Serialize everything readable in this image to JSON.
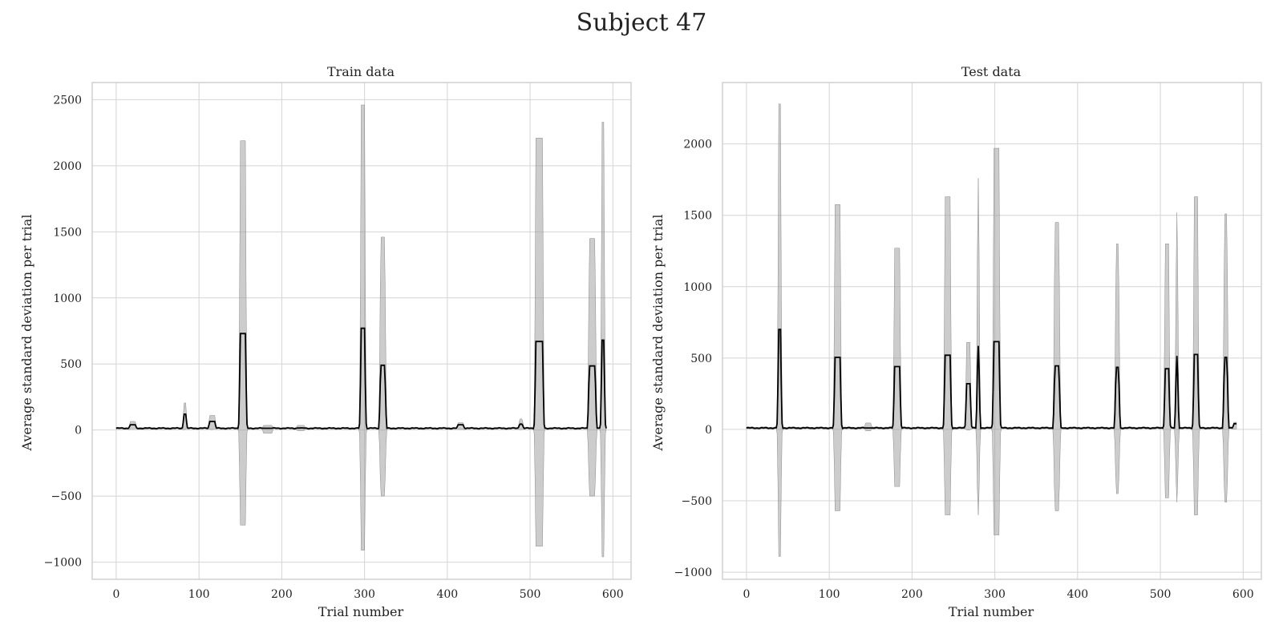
{
  "figure": {
    "title": "Subject 47"
  },
  "chart_data": [
    {
      "type": "line",
      "title": "Train data",
      "xlabel": "Trial number",
      "ylabel": "Average standard deviation per trial",
      "xlim": [
        -29,
        622
      ],
      "ylim": [
        -1130,
        2630
      ],
      "xticks": [
        0,
        100,
        200,
        300,
        400,
        500,
        600
      ],
      "yticks": [
        -1000,
        -500,
        0,
        500,
        1000,
        1500,
        2000,
        2500
      ],
      "grid": true,
      "x_end": 592,
      "baseline": 13,
      "series": [
        {
          "spikes": [
            {
              "x": 20,
              "w": 6,
              "mean": 40,
              "upper": 65,
              "lower": 10
            },
            {
              "x": 83,
              "w": 2,
              "mean": 120,
              "upper": 205,
              "lower": 5
            },
            {
              "x": 116,
              "w": 6,
              "mean": 65,
              "upper": 110,
              "lower": 10
            },
            {
              "x": 153,
              "w": 6,
              "mean": 730,
              "upper": 2190,
              "lower": -720
            },
            {
              "x": 183,
              "w": 10,
              "mean": 13,
              "upper": 35,
              "lower": -25
            },
            {
              "x": 223,
              "w": 8,
              "mean": 15,
              "upper": 35,
              "lower": -5
            },
            {
              "x": 298,
              "w": 4,
              "mean": 770,
              "upper": 2460,
              "lower": -910
            },
            {
              "x": 322,
              "w": 5,
              "mean": 490,
              "upper": 1460,
              "lower": -500
            },
            {
              "x": 416,
              "w": 6,
              "mean": 40,
              "upper": 55,
              "lower": 5
            },
            {
              "x": 489,
              "w": 3,
              "mean": 45,
              "upper": 85,
              "lower": 5
            },
            {
              "x": 511,
              "w": 8,
              "mean": 670,
              "upper": 2210,
              "lower": -880
            },
            {
              "x": 575,
              "w": 7,
              "mean": 485,
              "upper": 1450,
              "lower": -500
            },
            {
              "x": 588,
              "w": 2,
              "mean": 680,
              "upper": 2330,
              "lower": -960
            }
          ]
        }
      ]
    },
    {
      "type": "line",
      "title": "Test data",
      "xlabel": "Trial number",
      "ylabel": "Average standard deviation per trial",
      "xlim": [
        -29,
        622
      ],
      "ylim": [
        -1050,
        2430
      ],
      "xticks": [
        0,
        100,
        200,
        300,
        400,
        500,
        600
      ],
      "yticks": [
        -1000,
        -500,
        0,
        500,
        1000,
        1500,
        2000
      ],
      "grid": true,
      "x_end": 592,
      "baseline": 10,
      "series": [
        {
          "spikes": [
            {
              "x": 40,
              "w": 2,
              "mean": 700,
              "upper": 2280,
              "lower": -890
            },
            {
              "x": 110,
              "w": 6,
              "mean": 505,
              "upper": 1575,
              "lower": -570
            },
            {
              "x": 147,
              "w": 6,
              "mean": 10,
              "upper": 45,
              "lower": -10
            },
            {
              "x": 182,
              "w": 6,
              "mean": 440,
              "upper": 1270,
              "lower": -400
            },
            {
              "x": 243,
              "w": 6,
              "mean": 520,
              "upper": 1630,
              "lower": -600
            },
            {
              "x": 268,
              "w": 4,
              "mean": 320,
              "upper": 610,
              "lower": -5
            },
            {
              "x": 280,
              "w": 1,
              "mean": 585,
              "upper": 1760,
              "lower": -600
            },
            {
              "x": 302,
              "w": 6,
              "mean": 615,
              "upper": 1970,
              "lower": -740
            },
            {
              "x": 375,
              "w": 5,
              "mean": 445,
              "upper": 1450,
              "lower": -570
            },
            {
              "x": 448,
              "w": 3,
              "mean": 435,
              "upper": 1300,
              "lower": -450
            },
            {
              "x": 508,
              "w": 4,
              "mean": 425,
              "upper": 1300,
              "lower": -480
            },
            {
              "x": 520,
              "w": 1,
              "mean": 515,
              "upper": 1520,
              "lower": -510
            },
            {
              "x": 543,
              "w": 4,
              "mean": 525,
              "upper": 1630,
              "lower": -600
            },
            {
              "x": 579,
              "w": 3,
              "mean": 505,
              "upper": 1510,
              "lower": -510
            },
            {
              "x": 591,
              "w": 4,
              "mean": 40,
              "upper": 50,
              "lower": 20
            }
          ]
        }
      ]
    }
  ]
}
